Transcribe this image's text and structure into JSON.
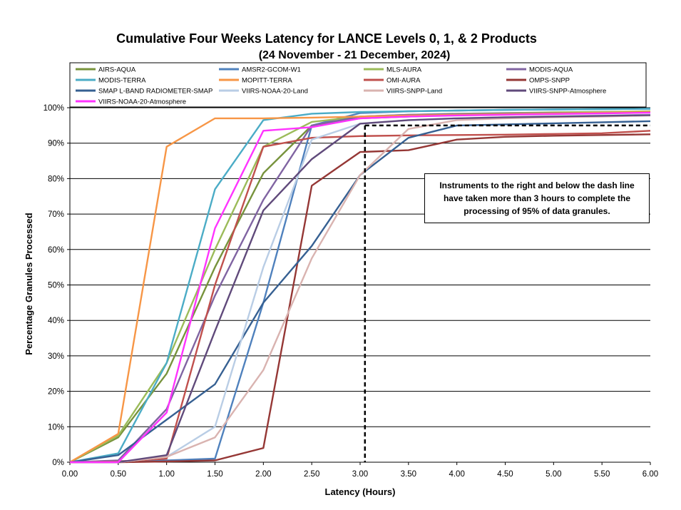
{
  "chart_data": {
    "type": "line",
    "title": "Cumulative Four Weeks Latency  for LANCE Levels 0, 1, & 2 Products",
    "subtitle": "(24  November   -  21  December,  2024)",
    "xlabel": "Latency (Hours)",
    "ylabel": "Percentage Granules Processed",
    "xlim": [
      0,
      6
    ],
    "ylim": [
      0,
      100
    ],
    "x_ticks": [
      "0.00",
      "0.50",
      "1.00",
      "1.50",
      "2.00",
      "2.50",
      "3.00",
      "3.50",
      "4.00",
      "4.50",
      "5.00",
      "5.50",
      "6.00"
    ],
    "y_ticks": [
      "0%",
      "10%",
      "20%",
      "30%",
      "40%",
      "50%",
      "60%",
      "70%",
      "80%",
      "90%",
      "100%"
    ],
    "grid": "horizontal",
    "legend_position": "top",
    "x": [
      0,
      0.5,
      1,
      1.5,
      2,
      2.5,
      3,
      3.5,
      4,
      4.5,
      5,
      5.5,
      6
    ],
    "series": [
      {
        "name": "AIRS-AQUA",
        "color": "#77933C",
        "values": [
          0,
          7,
          25,
          55,
          81.5,
          95,
          97,
          97.5,
          98,
          98.2,
          98.4,
          98.6,
          98.8
        ]
      },
      {
        "name": "AMSR2-GCOM-W1",
        "color": "#4F81BD",
        "values": [
          0,
          0.3,
          0.5,
          1,
          45,
          95,
          98.5,
          99,
          99.2,
          99.4,
          99.5,
          99.6,
          99.7
        ]
      },
      {
        "name": "MLS-AURA",
        "color": "#9BBB59",
        "values": [
          0,
          7.5,
          28,
          60,
          89,
          96,
          97.5,
          98,
          98.3,
          98.5,
          98.7,
          98.8,
          99
        ]
      },
      {
        "name": "MODIS-AQUA",
        "color": "#8064A2",
        "values": [
          0,
          0.5,
          15,
          47,
          74,
          95,
          97.5,
          98,
          98.2,
          98.4,
          98.5,
          98.6,
          98.7
        ]
      },
      {
        "name": "MODIS-TERRA",
        "color": "#4BACC6",
        "values": [
          0,
          2.5,
          28,
          77,
          96.5,
          98.3,
          98.8,
          99,
          99.2,
          99.4,
          99.5,
          99.6,
          99.7
        ]
      },
      {
        "name": "MOPITT-TERRA",
        "color": "#F79646",
        "values": [
          0,
          8,
          89,
          97,
          97,
          97.2,
          97.5,
          97.8,
          98,
          98.2,
          98.4,
          98.6,
          98.8
        ]
      },
      {
        "name": "OMI-AURA",
        "color": "#C0504D",
        "values": [
          0,
          0.2,
          1,
          50,
          89,
          91.5,
          92,
          92.2,
          92.3,
          92.4,
          92.6,
          92.8,
          93.5
        ]
      },
      {
        "name": "OMPS-SNPP",
        "color": "#953735",
        "values": [
          0,
          0,
          0.2,
          0.5,
          4,
          78,
          87.5,
          88,
          91,
          91.8,
          92.1,
          92.3,
          92.5
        ]
      },
      {
        "name": "SMAP L-BAND RADIOMETER-SMAP",
        "color": "#366092",
        "values": [
          0,
          2,
          12,
          22,
          45,
          61,
          81,
          91.5,
          95,
          95.3,
          95.6,
          95.9,
          96.2
        ]
      },
      {
        "name": "VIIRS-NOAA-20-Land",
        "color": "#B9CDE5",
        "values": [
          0,
          0,
          1.5,
          10,
          55,
          91,
          95.5,
          96.5,
          97,
          97.3,
          97.6,
          97.8,
          98
        ]
      },
      {
        "name": "VIIRS-SNPP-Land",
        "color": "#D9B3B0",
        "values": [
          0,
          0,
          1.5,
          7,
          26,
          57.5,
          81,
          94,
          96.5,
          97,
          97.3,
          97.5,
          97.8
        ]
      },
      {
        "name": "VIIRS-SNPP-Atmosphere",
        "color": "#604A7B",
        "values": [
          0,
          0,
          2,
          37,
          71,
          85.5,
          95.5,
          96.5,
          97,
          97.3,
          97.5,
          97.7,
          97.9
        ]
      },
      {
        "name": "VIIRS-NOAA-20-Atmosphere",
        "color": "#FF33FF",
        "values": [
          0,
          0,
          14,
          66,
          93.5,
          94.5,
          97,
          97.5,
          97.8,
          98,
          98.2,
          98.4,
          98.6
        ]
      }
    ],
    "threshold_line": {
      "x": 3.05,
      "y": 95,
      "style": "dashed",
      "color": "#000000"
    },
    "annotation": "Instruments to the right and below the dash line have taken more than 3 hours to complete the processing of 95% of data granules."
  }
}
